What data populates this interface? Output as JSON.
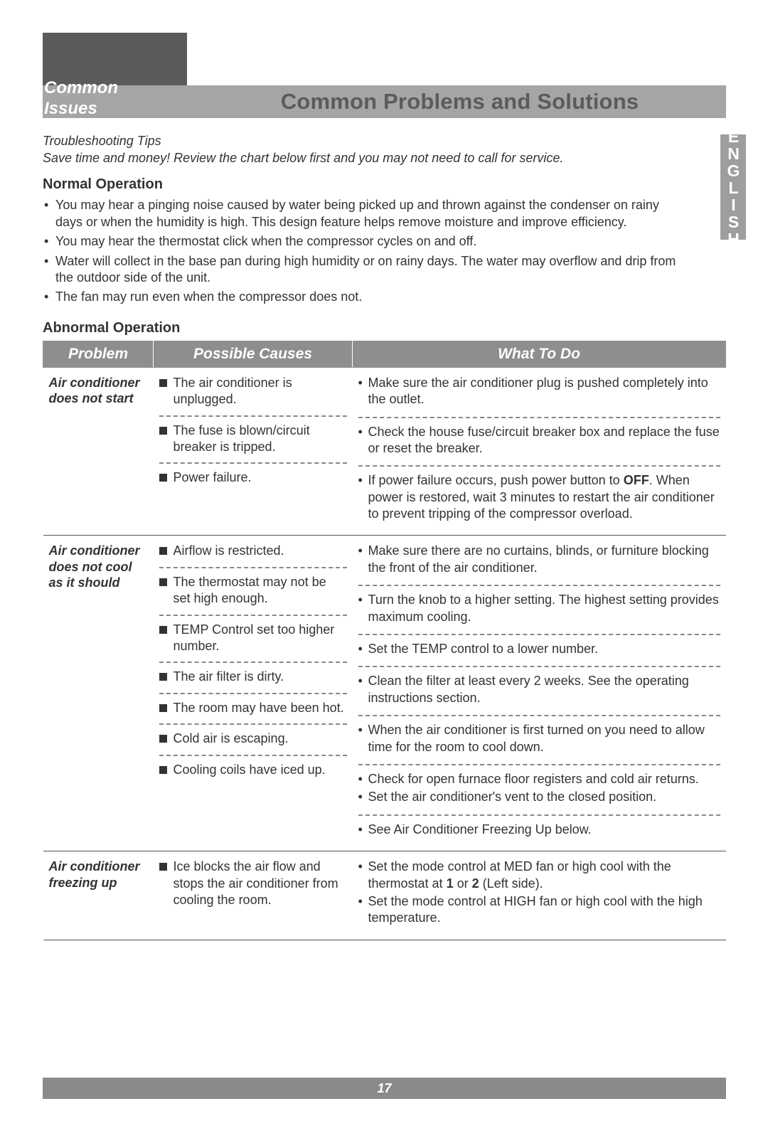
{
  "header": {
    "section_label_line1": "Common",
    "section_label_line2": "Issues",
    "banner_title": "Common Problems and Solutions",
    "side_tab": "ENGLISH"
  },
  "tips": {
    "title": "Troubleshooting Tips",
    "body": "Save time and money! Review the chart below first and you may not need to call for service."
  },
  "normal": {
    "heading": "Normal Operation",
    "items": [
      {
        "main": "You may hear a pinging noise caused by water being picked up and thrown against the condenser on rainy",
        "sub": "days or when the humidity is high. This design feature helps remove moisture and improve efficiency."
      },
      {
        "main": "You may hear the thermostat click when the compressor cycles on and off.",
        "sub": ""
      },
      {
        "main": "Water will collect in the base pan during high humidity or on rainy days. The water may overflow and drip from",
        "sub": "the outdoor side of the unit."
      },
      {
        "main": "The fan may run even when the compressor does not.",
        "sub": ""
      }
    ]
  },
  "abnormal": {
    "heading": "Abnormal Operation",
    "columns": [
      "Problem",
      "Possible Causes",
      "What To Do"
    ]
  },
  "problems": [
    {
      "problem": "Air conditioner does not start",
      "rows": [
        {
          "cause": "The air conditioner is unplugged.",
          "todos": [
            "Make sure the air conditioner plug is pushed completely into the outlet."
          ]
        },
        {
          "cause": "The fuse is blown/circuit breaker is tripped.",
          "todos": [
            "Check the house fuse/circuit breaker box and replace the fuse or reset the breaker."
          ]
        },
        {
          "cause": "Power failure.",
          "todos": [
            "If power failure occurs, push power button to OFF. When power is restored, wait 3 minutes to restart the air conditioner to prevent tripping of the compressor overload."
          ],
          "bold_word": "OFF"
        }
      ]
    },
    {
      "problem": "Air conditioner does not cool as it should",
      "rows": [
        {
          "cause": "Airflow is restricted.",
          "todos": [
            "Make sure there are no curtains, blinds, or furniture blocking the front of the air conditioner."
          ]
        },
        {
          "cause": "The thermostat may not be set high enough.",
          "todos": [
            "Turn the knob to a higher setting. The highest setting provides maximum cooling."
          ]
        },
        {
          "cause": "TEMP Control set too higher number.",
          "todos": [
            "Set the TEMP control to a lower number."
          ]
        },
        {
          "cause": "The air filter is dirty.",
          "todos": [
            "Clean the filter at least every 2 weeks. See the operating instructions section."
          ]
        },
        {
          "cause": "The room may have been hot.",
          "todos": [
            "When the air conditioner is first turned on you need to allow time for the room to cool down."
          ]
        },
        {
          "cause": "Cold air is escaping.",
          "todos": [
            "Check for open furnace floor registers and cold air returns.",
            "Set the air conditioner's vent to the closed position."
          ]
        },
        {
          "cause": "Cooling coils have iced up.",
          "todos": [
            "See Air Conditioner Freezing Up below."
          ]
        }
      ]
    },
    {
      "problem": "Air conditioner freezing up",
      "rows": [
        {
          "cause": "Ice blocks the air flow and stops the air conditioner from cooling the room.",
          "todos": [
            "Set the mode control at MED fan or high cool with the thermostat at 1 or 2 (Left side).",
            "Set the mode control at HIGH fan or high cool with the high temperature."
          ],
          "bold_pairs": [
            [
              "1",
              "2"
            ]
          ]
        }
      ]
    }
  ],
  "footer": {
    "page_no": "17"
  },
  "colors": {
    "dark_gray": "#5b5b5b",
    "banner_gray": "#a5a5a5",
    "header_gray": "#8e8e8e",
    "footer_gray": "#8a8a8a",
    "side_tab_gray": "#9e9e9e",
    "text": "#333333",
    "white": "#ffffff",
    "dash": "#888888",
    "row_border": "#555555"
  }
}
